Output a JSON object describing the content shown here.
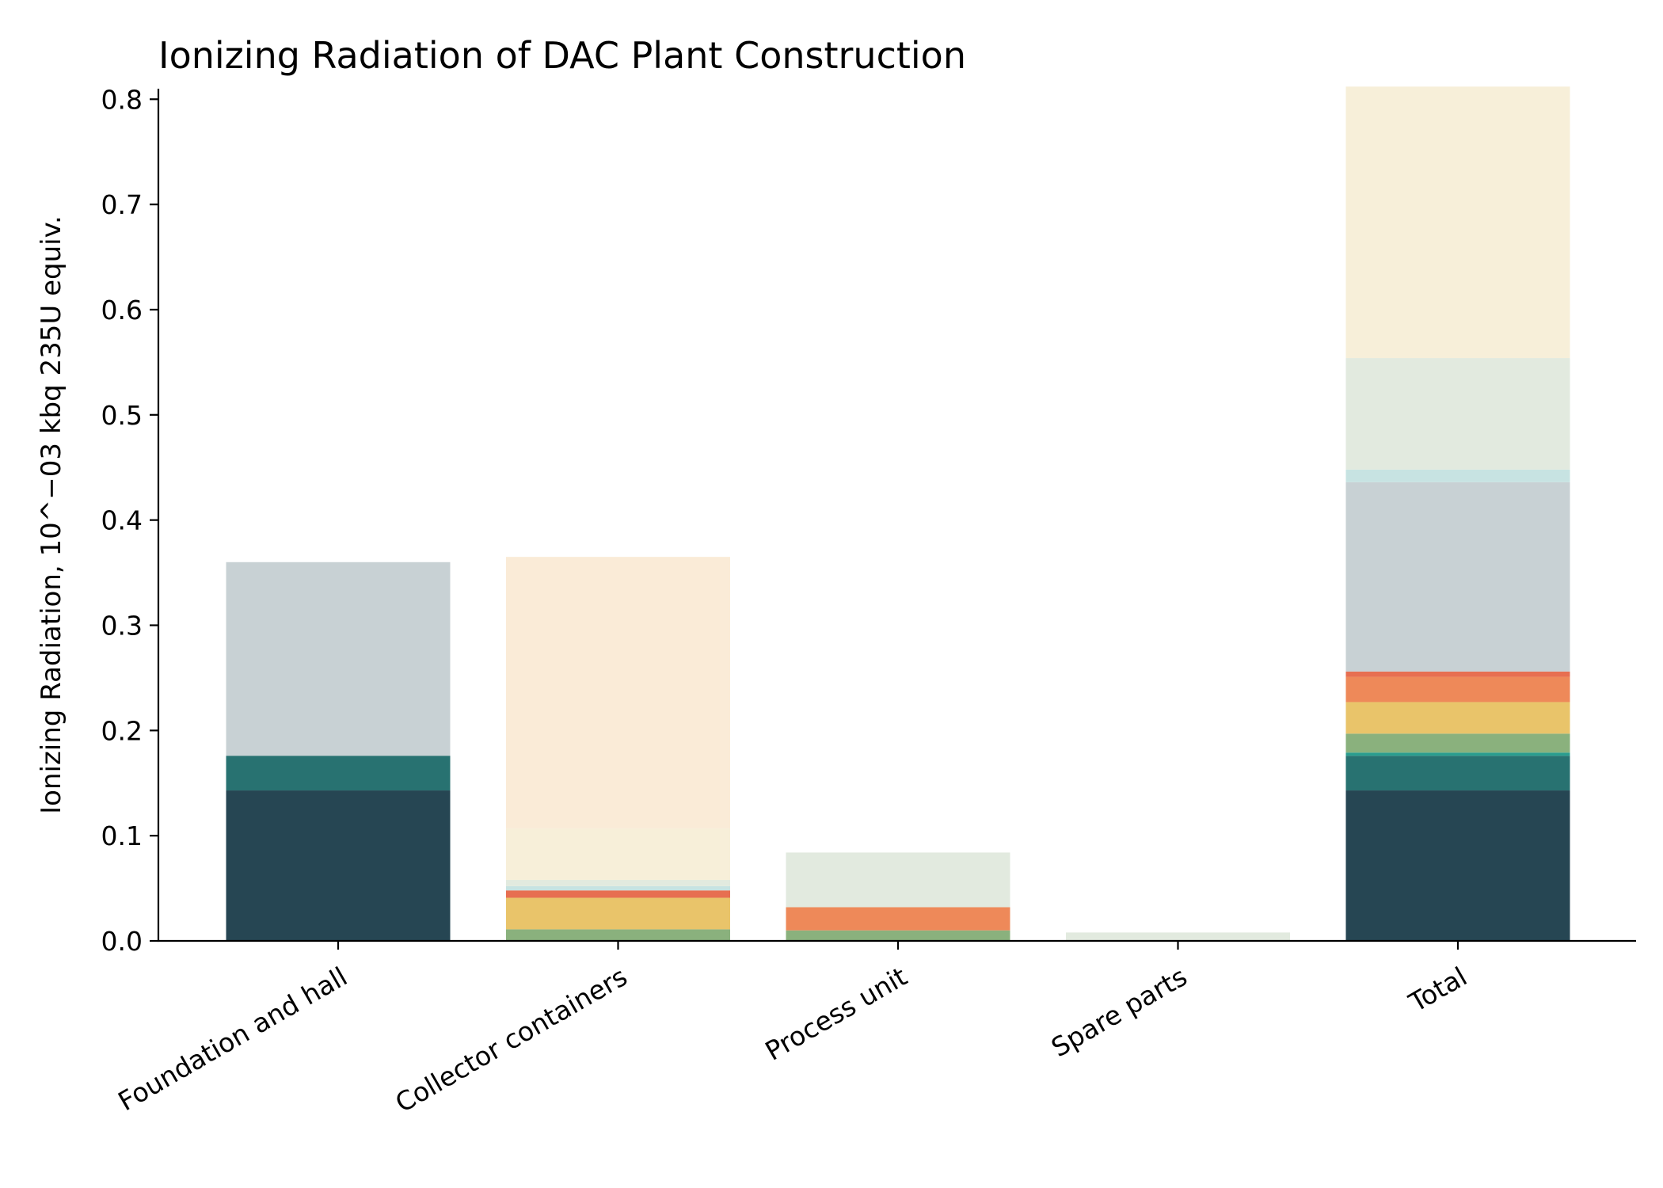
{
  "chart_data": {
    "type": "bar",
    "stacked": true,
    "title": "Ionizing Radiation of DAC Plant Construction",
    "xlabel": "",
    "ylabel": "Ionizing Radiation, 10^−03 kbq 235U equiv.",
    "ylim": [
      0,
      0.81
    ],
    "yticks": [
      "0.0",
      "0.1",
      "0.2",
      "0.3",
      "0.4",
      "0.5",
      "0.6",
      "0.7",
      "0.8"
    ],
    "categories": [
      "Foundation and hall",
      "Collector containers",
      "Process unit",
      "Spare parts",
      "Total"
    ],
    "grid": false,
    "legend": "none",
    "segments": [
      {
        "color": "#264653",
        "values": [
          0.143,
          0,
          0,
          0,
          0.143
        ]
      },
      {
        "color": "#287271",
        "values": [
          0.033,
          0,
          0,
          0,
          0.033
        ]
      },
      {
        "color": "#2a9d8f",
        "values": [
          0,
          0,
          0,
          0,
          0.003
        ]
      },
      {
        "color": "#8ab17d",
        "values": [
          0,
          0.011,
          0.01,
          0,
          0.018
        ]
      },
      {
        "color": "#e9c46a",
        "values": [
          0,
          0.03,
          0,
          0,
          0.03
        ]
      },
      {
        "color": "#ee8959",
        "values": [
          0,
          0,
          0.022,
          0,
          0.024
        ]
      },
      {
        "color": "#e76f51",
        "values": [
          0,
          0.007,
          0,
          0,
          0.005
        ]
      },
      {
        "color": "#c8d1d4",
        "values": [
          0.184,
          0,
          0,
          0,
          0.18
        ]
      },
      {
        "color": "#c7e3e2",
        "values": [
          0,
          0.004,
          0,
          0,
          0.012
        ]
      },
      {
        "color": "#e2eadf",
        "values": [
          0,
          0.006,
          0.052,
          0.008,
          0.106
        ]
      },
      {
        "color": "#f7efd9",
        "values": [
          0,
          0.049,
          0,
          0,
          0.258
        ]
      },
      {
        "color": "#faebd7",
        "values": [
          0,
          0.258,
          0,
          0,
          0
        ]
      }
    ]
  }
}
